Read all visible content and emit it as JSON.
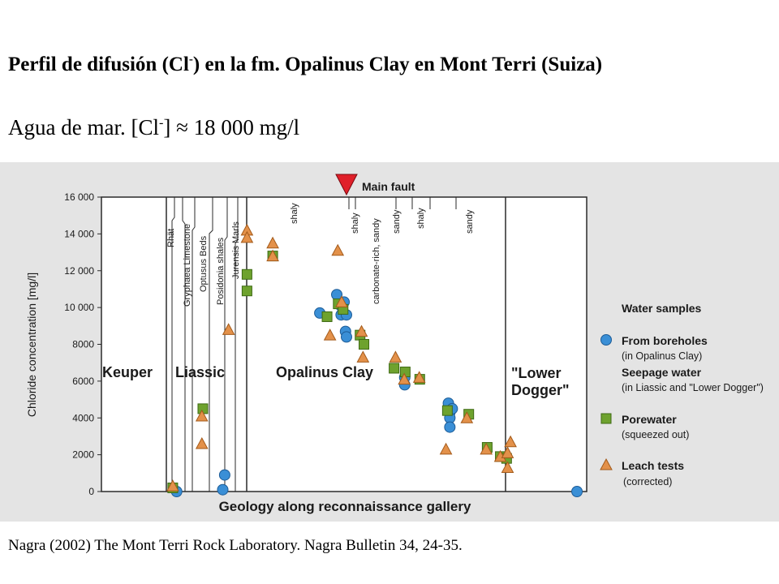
{
  "title": {
    "prefix": "Perfil de difusión (Cl",
    "sup": "-",
    "suffix": ") en la fm. Opalinus Clay en Mont Terri (Suiza)"
  },
  "subtitle": {
    "prefix": "Agua de mar. [Cl",
    "sup": "-",
    "suffix": "] ≈ 18 000 mg/l"
  },
  "citation": "Nagra (2002) The Mont Terri Rock Laboratory. Nagra Bulletin 34, 24-35.",
  "chart_data": {
    "type": "scatter",
    "ylabel": "Chloride concentration [mg/l]",
    "xlabel": "Geology along reconnaissance gallery",
    "ylim": [
      0,
      16000
    ],
    "xlim": [
      0,
      100
    ],
    "y_ticks": [
      0,
      2000,
      4000,
      6000,
      8000,
      10000,
      12000,
      14000,
      16000
    ],
    "y_tick_labels": [
      "0",
      "2000",
      "4000",
      "6000",
      "8000",
      "10 000",
      "12 000",
      "14 000",
      "16 000"
    ],
    "fault_label": "Main fault",
    "formations": [
      "Keuper",
      "Liassic",
      "Opalinus Clay",
      "\"Lower",
      "Dogger\""
    ],
    "liassic_units": [
      "Rhät",
      "Gryphaea Limestone",
      "Optusus Beds",
      "Posidonia shales",
      "Jurensis Marls"
    ],
    "opalinus_facies": [
      "shaly",
      "shaly",
      "carbonate-rich, sandy",
      "sandy",
      "shaly",
      "sandy"
    ],
    "legend": {
      "title": "Water samples",
      "boreholes": [
        "From boreholes",
        "(in Opalinus Clay)"
      ],
      "seepage": [
        "Seepage water",
        "(in Liassic and \"Lower Dogger\")"
      ],
      "porewater": [
        "Porewater",
        "(squeezed out)"
      ],
      "leach": [
        "Leach tests",
        "(corrected)"
      ]
    },
    "series": [
      {
        "name": "From boreholes / Seepage water",
        "marker": "circle",
        "color": "#3a8fd6",
        "points": [
          [
            15.5,
            0
          ],
          [
            25.4,
            900
          ],
          [
            25,
            100
          ],
          [
            98,
            0
          ],
          [
            45,
            9700
          ],
          [
            48.5,
            10700
          ],
          [
            49.3,
            10100
          ],
          [
            50,
            10300
          ],
          [
            49.4,
            9600
          ],
          [
            50.5,
            9600
          ],
          [
            50.3,
            8700
          ],
          [
            50.5,
            8400
          ],
          [
            62.5,
            6200
          ],
          [
            62.5,
            5800
          ],
          [
            71.5,
            4800
          ],
          [
            71.8,
            4300
          ],
          [
            71.8,
            4000
          ],
          [
            71.8,
            3500
          ],
          [
            72.3,
            4500
          ]
        ]
      },
      {
        "name": "Porewater",
        "marker": "square",
        "color": "#6ea22e",
        "points": [
          [
            14.7,
            200
          ],
          [
            20.9,
            4500
          ],
          [
            30,
            11800
          ],
          [
            30,
            10900
          ],
          [
            35.3,
            12800
          ],
          [
            46.5,
            9500
          ],
          [
            48.8,
            10200
          ],
          [
            49.8,
            9900
          ],
          [
            53.3,
            8500
          ],
          [
            54.1,
            8000
          ],
          [
            60.3,
            6700
          ],
          [
            62.6,
            6500
          ],
          [
            65.6,
            6100
          ],
          [
            71.3,
            4400
          ],
          [
            75.7,
            4200
          ],
          [
            79.5,
            2400
          ],
          [
            82.2,
            1900
          ],
          [
            83.5,
            1800
          ]
        ]
      },
      {
        "name": "Leach tests",
        "marker": "triangle",
        "color": "#e3914a",
        "points": [
          [
            14.7,
            300
          ],
          [
            20.7,
            4100
          ],
          [
            20.7,
            2600
          ],
          [
            26.2,
            8800
          ],
          [
            30,
            14200
          ],
          [
            30,
            13800
          ],
          [
            35.3,
            13500
          ],
          [
            35.3,
            12800
          ],
          [
            47.1,
            8500
          ],
          [
            48.7,
            13100
          ],
          [
            49.5,
            10300
          ],
          [
            53.6,
            8700
          ],
          [
            53.9,
            7300
          ],
          [
            60.6,
            7300
          ],
          [
            62.4,
            6100
          ],
          [
            65.5,
            6200
          ],
          [
            71,
            2300
          ],
          [
            75.3,
            4000
          ],
          [
            79.3,
            2300
          ],
          [
            82.2,
            1900
          ],
          [
            83.7,
            2100
          ],
          [
            84.3,
            2700
          ],
          [
            83.7,
            1300
          ]
        ]
      }
    ]
  },
  "colors": {
    "page": "#ffffff",
    "panel": "#e4e4e4",
    "fault": "#e0202a",
    "text": "#1a1a1a"
  }
}
